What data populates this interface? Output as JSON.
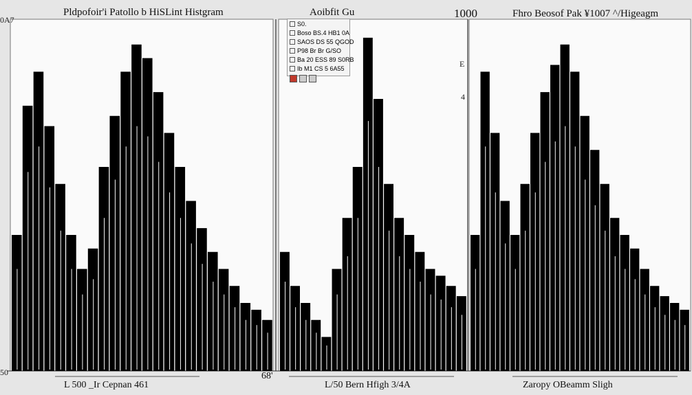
{
  "header": {
    "left_title": "Pldpofoir'i Patollo b HiSLint Histgram",
    "center_title": "Aoibfit Gu",
    "right_number": "1000",
    "right_title": "Fhro Beosof Pak ¥1007 ^/Higeagm"
  },
  "axis_labels": {
    "left_top": "0A7",
    "left_bottom": "50",
    "right_top": "E",
    "right_mid": "4"
  },
  "legend": {
    "rows": [
      "S0.",
      "Boso BS.4 HB1 0A",
      "SAOS DS 55 QGOD",
      "P98 Br Br G/SO",
      "Ba 20 ESS 89 S0RB",
      "Ib M1 CS 5 6A55"
    ]
  },
  "bottom_labels": {
    "left": "L 500 _Ir Cepnan 461",
    "left_marker": "68'",
    "center": "L/50 Bern Hfigh 3/4A",
    "right": "Zaropy OBeamm Sligh"
  },
  "colors": {
    "bar": "#000000",
    "panel": "#fafafa",
    "background": "#e6e6e6"
  },
  "chart_data": [
    {
      "type": "bar",
      "title": "Pldpofoir'i Patollo b HiSLint Histgram",
      "xlabel": "L 500 _Ir Cepnan 461",
      "ylabel": "",
      "ylim": [
        0,
        100
      ],
      "series": [
        {
          "values": [
            40,
            78,
            88,
            72,
            55,
            40,
            30,
            36,
            60,
            75,
            88,
            96,
            92,
            82,
            70,
            60,
            50,
            42,
            35,
            30,
            25,
            20,
            18,
            15
          ]
        }
      ]
    },
    {
      "type": "bar",
      "title": "Aoibfit Gu",
      "xlabel": "L/50 Bern Hfigh 3/4A",
      "ylabel": "",
      "ylim": [
        0,
        100
      ],
      "series": [
        {
          "values": [
            35,
            25,
            20,
            15,
            10,
            30,
            45,
            60,
            98,
            80,
            55,
            45,
            40,
            35,
            30,
            28,
            25,
            22
          ]
        }
      ]
    },
    {
      "type": "bar",
      "title": "Fhro Beosof Pak ¥1007 ^/Higeagm",
      "xlabel": "Zaropy OBeamm Sligh",
      "ylabel": "",
      "ylim": [
        0,
        100
      ],
      "series": [
        {
          "values": [
            40,
            88,
            70,
            50,
            40,
            55,
            70,
            82,
            90,
            96,
            88,
            75,
            65,
            55,
            45,
            40,
            36,
            30,
            25,
            22,
            20,
            18
          ]
        }
      ]
    }
  ]
}
